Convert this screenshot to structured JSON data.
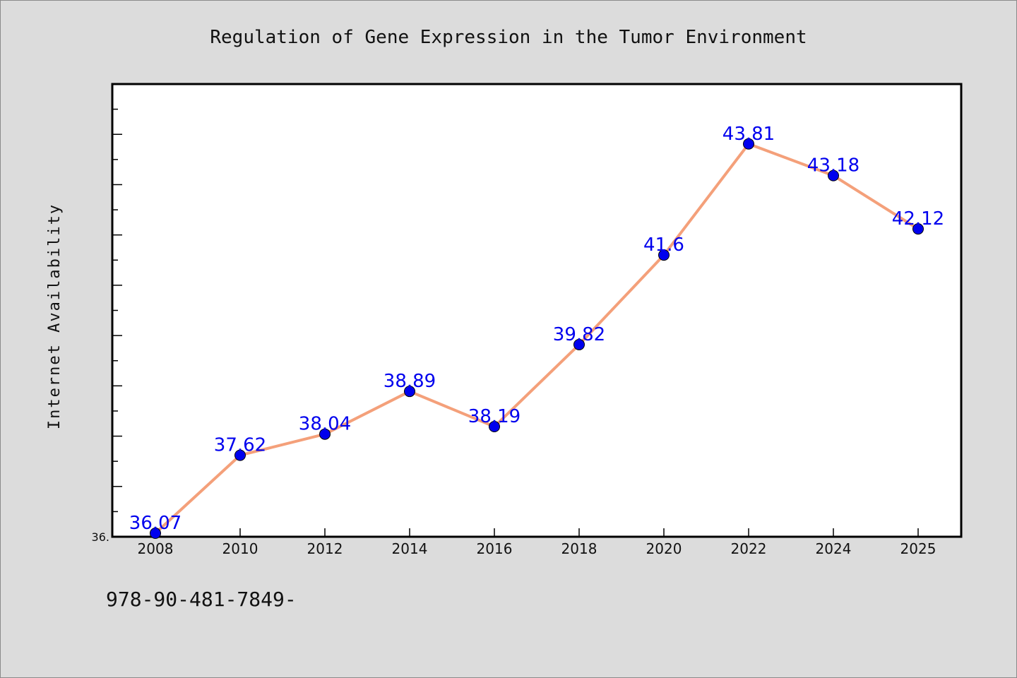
{
  "colors": {
    "background": "#dcdcdc",
    "plot_background": "#ffffff",
    "line": "#f4a07a",
    "marker": "#0000ee",
    "data_label": "#0000ee"
  },
  "footer": {
    "code": "978-90-481-7849-"
  },
  "chart_data": {
    "type": "line",
    "title": "Regulation of Gene Expression in the Tumor Environment",
    "xlabel": "",
    "ylabel": "Internet Availability",
    "categories": [
      "2008",
      "2010",
      "2012",
      "2014",
      "2016",
      "2018",
      "2020",
      "2022",
      "2024",
      "2025"
    ],
    "series": [
      {
        "values": [
          36.07,
          37.62,
          38.04,
          38.89,
          38.19,
          39.82,
          41.6,
          43.81,
          43.18,
          42.12
        ],
        "data_labels": [
          "36.07",
          "37.62",
          "38.04",
          "38.89",
          "38.19",
          "39.82",
          "41.6",
          "43.81",
          "43.18",
          "42.12"
        ]
      }
    ],
    "ylim": [
      36.0,
      45.0
    ],
    "y_tick_labels": [
      "36."
    ],
    "grid": false,
    "legend": "none"
  }
}
